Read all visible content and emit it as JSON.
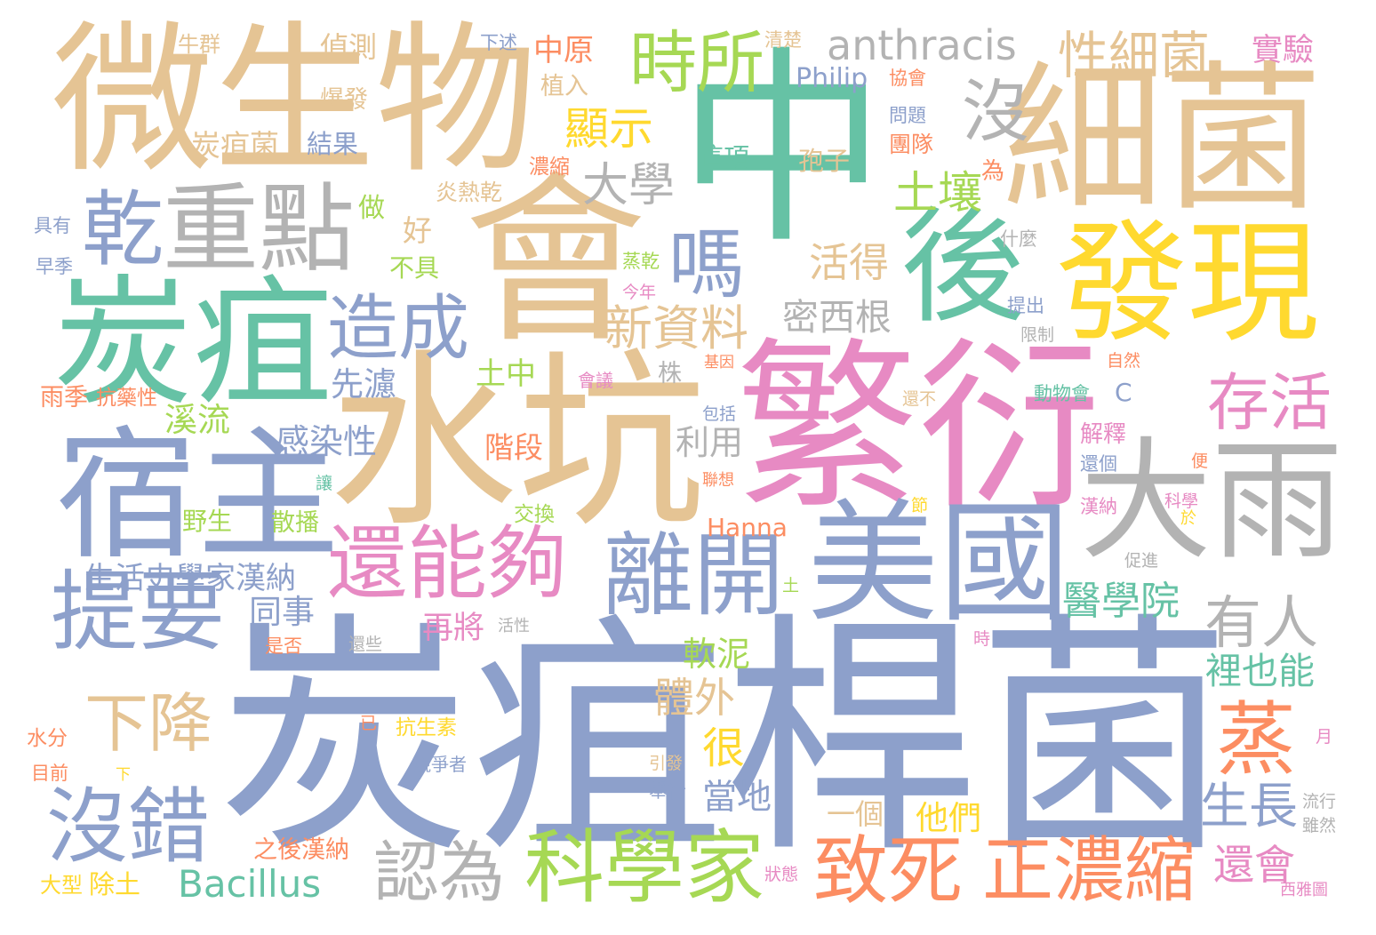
{
  "palette": {
    "teal": "#66c2a5",
    "orange": "#fc8d62",
    "blue": "#8da0cb",
    "pink": "#e78ac3",
    "lime": "#a6d854",
    "yellow": "#ffd92f",
    "tan": "#e5c494",
    "gray": "#b3b3b3"
  },
  "words": [
    {
      "text": "炭疽桿菌",
      "color": "blue"
    },
    {
      "text": "水坑",
      "color": "tan"
    },
    {
      "text": "繁衍",
      "color": "pink"
    },
    {
      "text": "中",
      "color": "teal"
    },
    {
      "text": "會",
      "color": "tan"
    },
    {
      "text": "細菌",
      "color": "tan"
    },
    {
      "text": "微生物",
      "color": "tan"
    },
    {
      "text": "炭疽",
      "color": "teal"
    },
    {
      "text": "宿主",
      "color": "blue"
    },
    {
      "text": "大雨",
      "color": "gray"
    },
    {
      "text": "美國",
      "color": "blue"
    },
    {
      "text": "後",
      "color": "teal"
    },
    {
      "text": "發現",
      "color": "yellow"
    },
    {
      "text": "乾",
      "color": "blue"
    },
    {
      "text": "重點",
      "color": "gray"
    },
    {
      "text": "提要",
      "color": "blue"
    },
    {
      "text": "下降",
      "color": "tan"
    },
    {
      "text": "沒錯",
      "color": "blue"
    },
    {
      "text": "還能夠",
      "color": "pink"
    },
    {
      "text": "離開",
      "color": "blue"
    },
    {
      "text": "有人",
      "color": "gray"
    },
    {
      "text": "存活",
      "color": "pink"
    },
    {
      "text": "沒",
      "color": "gray"
    },
    {
      "text": "嗎",
      "color": "blue"
    },
    {
      "text": "造成",
      "color": "blue"
    },
    {
      "text": "時所",
      "color": "lime"
    },
    {
      "text": "顯示",
      "color": "yellow"
    },
    {
      "text": "大學",
      "color": "gray"
    },
    {
      "text": "土壤",
      "color": "lime"
    },
    {
      "text": "性細菌",
      "color": "tan"
    },
    {
      "text": "anthracis",
      "color": "gray"
    },
    {
      "text": "新資料",
      "color": "tan"
    },
    {
      "text": "活得",
      "color": "tan"
    },
    {
      "text": "密西根",
      "color": "gray"
    },
    {
      "text": "蒸",
      "color": "orange"
    },
    {
      "text": "生長",
      "color": "blue"
    },
    {
      "text": "裡也能",
      "color": "teal"
    },
    {
      "text": "醫學院",
      "color": "teal"
    },
    {
      "text": "正濃縮",
      "color": "orange"
    },
    {
      "text": "還會",
      "color": "pink"
    },
    {
      "text": "致死",
      "color": "orange"
    },
    {
      "text": "科學家",
      "color": "lime"
    },
    {
      "text": "認為",
      "color": "gray"
    },
    {
      "text": "Bacillus",
      "color": "teal"
    },
    {
      "text": "他們",
      "color": "yellow"
    },
    {
      "text": "一個",
      "color": "tan"
    },
    {
      "text": "當地",
      "color": "blue"
    },
    {
      "text": "很",
      "color": "yellow"
    },
    {
      "text": "體外",
      "color": "tan"
    },
    {
      "text": "軟泥",
      "color": "lime"
    },
    {
      "text": "Hanna",
      "color": "orange"
    },
    {
      "text": "Philip",
      "color": "blue"
    },
    {
      "text": "C",
      "color": "blue"
    },
    {
      "text": "感染性",
      "color": "blue"
    },
    {
      "text": "利用",
      "color": "gray"
    },
    {
      "text": "先濾",
      "color": "blue"
    },
    {
      "text": "土中",
      "color": "lime"
    },
    {
      "text": "溪流",
      "color": "lime"
    },
    {
      "text": "生活史學家漢納",
      "color": "blue"
    },
    {
      "text": "同事",
      "color": "blue"
    },
    {
      "text": "再將",
      "color": "pink"
    },
    {
      "text": "階段",
      "color": "orange"
    },
    {
      "text": "交換",
      "color": "lime"
    },
    {
      "text": "野生",
      "color": "lime"
    },
    {
      "text": "散播",
      "color": "lime"
    },
    {
      "text": "雨季",
      "color": "orange"
    },
    {
      "text": "抗藥性",
      "color": "orange"
    },
    {
      "text": "具有",
      "color": "blue"
    },
    {
      "text": "早季",
      "color": "blue"
    },
    {
      "text": "做",
      "color": "lime"
    },
    {
      "text": "好",
      "color": "tan"
    },
    {
      "text": "不具",
      "color": "lime"
    },
    {
      "text": "炎熱乾",
      "color": "tan"
    },
    {
      "text": "濃縮",
      "color": "orange"
    },
    {
      "text": "炭疽菌",
      "color": "tan"
    },
    {
      "text": "結果",
      "color": "blue"
    },
    {
      "text": "爆發",
      "color": "tan"
    },
    {
      "text": "偵測",
      "color": "tan"
    },
    {
      "text": "牛群",
      "color": "tan"
    },
    {
      "text": "下述",
      "color": "blue"
    },
    {
      "text": "中原",
      "color": "orange"
    },
    {
      "text": "植入",
      "color": "tan"
    },
    {
      "text": "這項",
      "color": "teal"
    },
    {
      "text": "孢子",
      "color": "tan"
    },
    {
      "text": "為",
      "color": "orange"
    },
    {
      "text": "協會",
      "color": "orange"
    },
    {
      "text": "問題",
      "color": "blue"
    },
    {
      "text": "團隊",
      "color": "orange"
    },
    {
      "text": "實驗",
      "color": "pink"
    },
    {
      "text": "清楚",
      "color": "tan"
    },
    {
      "text": "什麼",
      "color": "gray"
    },
    {
      "text": "提出",
      "color": "blue"
    },
    {
      "text": "限制",
      "color": "gray"
    },
    {
      "text": "自然",
      "color": "orange"
    },
    {
      "text": "解釋",
      "color": "pink"
    },
    {
      "text": "還個",
      "color": "blue"
    },
    {
      "text": "漢納",
      "color": "pink"
    },
    {
      "text": "便",
      "color": "orange"
    },
    {
      "text": "科學",
      "color": "pink"
    },
    {
      "text": "於",
      "color": "yellow"
    },
    {
      "text": "促進",
      "color": "gray"
    },
    {
      "text": "節",
      "color": "yellow"
    },
    {
      "text": "時",
      "color": "pink"
    },
    {
      "text": "土",
      "color": "lime"
    },
    {
      "text": "還不",
      "color": "tan"
    },
    {
      "text": "動物會",
      "color": "teal"
    },
    {
      "text": "株",
      "color": "gray"
    },
    {
      "text": "基因",
      "color": "orange"
    },
    {
      "text": "會議",
      "color": "pink"
    },
    {
      "text": "包括",
      "color": "blue"
    },
    {
      "text": "聯想",
      "color": "orange"
    },
    {
      "text": "蒸乾",
      "color": "lime"
    },
    {
      "text": "今年",
      "color": "pink"
    },
    {
      "text": "讓",
      "color": "teal"
    },
    {
      "text": "活性",
      "color": "gray"
    },
    {
      "text": "還些",
      "color": "gray"
    },
    {
      "text": "是否",
      "color": "orange"
    },
    {
      "text": "水分",
      "color": "orange"
    },
    {
      "text": "目前",
      "color": "orange"
    },
    {
      "text": "下",
      "color": "yellow"
    },
    {
      "text": "已",
      "color": "orange"
    },
    {
      "text": "抗生素",
      "color": "yellow"
    },
    {
      "text": "競爭者",
      "color": "blue"
    },
    {
      "text": "引發",
      "color": "tan"
    },
    {
      "text": "舉行",
      "color": "blue"
    },
    {
      "text": "月",
      "color": "pink"
    },
    {
      "text": "流行",
      "color": "gray"
    },
    {
      "text": "雖然",
      "color": "gray"
    },
    {
      "text": "西雅圖",
      "color": "pink"
    },
    {
      "text": "狀態",
      "color": "pink"
    },
    {
      "text": "之後漢納",
      "color": "orange"
    },
    {
      "text": "大型",
      "color": "yellow"
    },
    {
      "text": "除土",
      "color": "yellow"
    }
  ]
}
